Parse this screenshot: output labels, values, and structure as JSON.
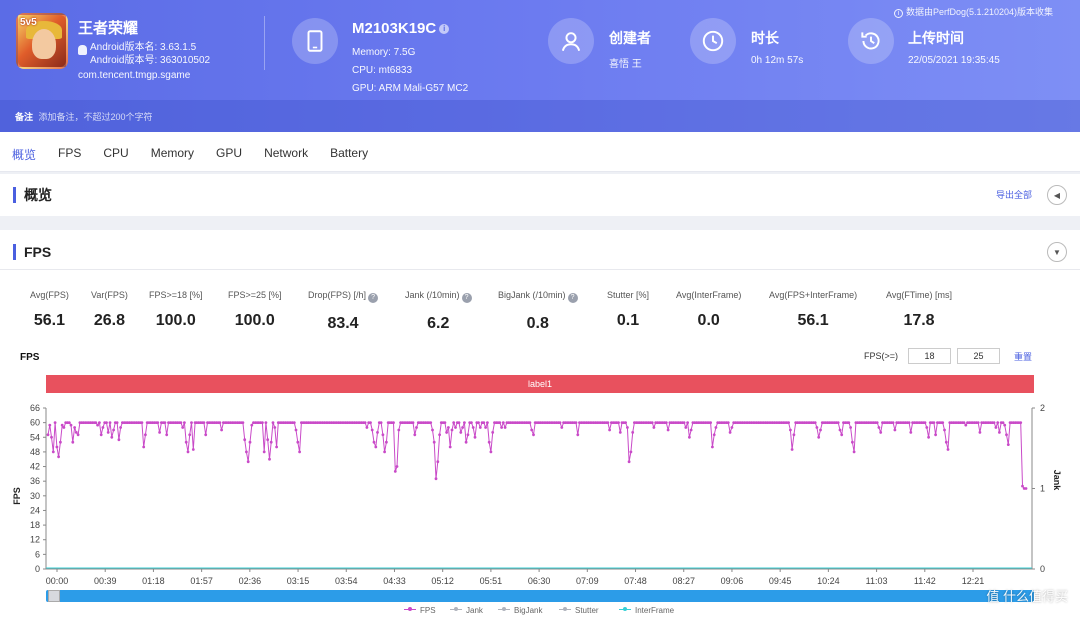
{
  "header": {
    "app": {
      "name": "王者荣耀",
      "version_label": "Android版本名: 3.63.1.5",
      "build_label": "Android版本号: 363010502",
      "package": "com.tencent.tmgp.sgame",
      "badge": "5v5"
    },
    "device": {
      "name": "M2103K19C",
      "memory": "Memory: 7.5G",
      "cpu": "CPU: mt6833",
      "gpu": "GPU: ARM Mali-G57 MC2"
    },
    "creator": {
      "title": "创建者",
      "value": "喜悟 王"
    },
    "duration": {
      "title": "时长",
      "value": "0h 12m 57s"
    },
    "upload": {
      "title": "上传时间",
      "value": "22/05/2021 19:35:45"
    },
    "perfdog_note": "数据由PerfDog(5.1.210204)版本收集",
    "note": {
      "label": "备注",
      "placeholder": "添加备注，不超过200个字符"
    }
  },
  "tabs": [
    "概览",
    "FPS",
    "CPU",
    "Memory",
    "GPU",
    "Network",
    "Battery"
  ],
  "overview": {
    "title": "概览",
    "export_label": "导出全部"
  },
  "fps_section": {
    "title": "FPS",
    "stats": [
      {
        "label": "Avg(FPS)",
        "value": "56.1"
      },
      {
        "label": "Var(FPS)",
        "value": "26.8"
      },
      {
        "label": "FPS>=18 [%]",
        "value": "100.0"
      },
      {
        "label": "FPS>=25 [%]",
        "value": "100.0"
      },
      {
        "label": "Drop(FPS) [/h]",
        "value": "83.4",
        "help": true
      },
      {
        "label": "Jank (/10min)",
        "value": "6.2",
        "help": true
      },
      {
        "label": "BigJank (/10min)",
        "value": "0.8",
        "help": true
      },
      {
        "label": "Stutter [%]",
        "value": "0.1"
      },
      {
        "label": "Avg(InterFrame)",
        "value": "0.0"
      },
      {
        "label": "Avg(FPS+InterFrame)",
        "value": "56.1"
      },
      {
        "label": "Avg(FTime) [ms]",
        "value": "17.8"
      }
    ],
    "chart_title": "FPS",
    "threshold_label": "FPS(>=)",
    "threshold_1": "18",
    "threshold_2": "25",
    "reset_label": "重置",
    "label_bar": "label1"
  },
  "chart_data": {
    "type": "line",
    "ylabel": "FPS",
    "y2label": "Jank",
    "ylim": [
      0,
      66
    ],
    "y2lim": [
      0,
      2
    ],
    "yticks": [
      "66",
      "60",
      "54",
      "48",
      "42",
      "36",
      "30",
      "24",
      "18",
      "12",
      "6",
      "0"
    ],
    "y2ticks": [
      "2",
      "1",
      "0"
    ],
    "xticks": [
      "00:00",
      "00:39",
      "01:18",
      "01:57",
      "02:36",
      "03:15",
      "03:54",
      "04:33",
      "05:12",
      "05:51",
      "06:30",
      "07:09",
      "07:48",
      "08:27",
      "09:06",
      "09:45",
      "10:24",
      "11:03",
      "11:42",
      "12:21"
    ],
    "fps_series": [
      55,
      59,
      54,
      48,
      60,
      50,
      46,
      52,
      59,
      58,
      60,
      60,
      60,
      59,
      52,
      58,
      56,
      55,
      60,
      60,
      60,
      60,
      60,
      60,
      60,
      60,
      60,
      60,
      59,
      60,
      55,
      58,
      60,
      60,
      56,
      60,
      54,
      57,
      60,
      60,
      53,
      58,
      60,
      60,
      60,
      60,
      60,
      60,
      60,
      60,
      60,
      60,
      60,
      60,
      50,
      55,
      60,
      60,
      60,
      60,
      60,
      60,
      60,
      56,
      60,
      60,
      60,
      55,
      60,
      60,
      60,
      60,
      60,
      60,
      60,
      60,
      58,
      60,
      52,
      48,
      55,
      60,
      49,
      60,
      60,
      60,
      60,
      60,
      60,
      55,
      60,
      60,
      60,
      60,
      60,
      60,
      60,
      60,
      57,
      60,
      60,
      60,
      60,
      60,
      60,
      60,
      60,
      60,
      60,
      60,
      60,
      53,
      48,
      44,
      52,
      59,
      60,
      60,
      60,
      60,
      60,
      60,
      48,
      60,
      53,
      45,
      52,
      60,
      58,
      50,
      60,
      60,
      60,
      60,
      60,
      60,
      60,
      60,
      60,
      60,
      57,
      52,
      48,
      60,
      60,
      60,
      60,
      60,
      60,
      60,
      60,
      60,
      60,
      60,
      60,
      60,
      60,
      60,
      60,
      60,
      60,
      60,
      60,
      60,
      60,
      60,
      60,
      60,
      60,
      60,
      60,
      60,
      60,
      60,
      60,
      60,
      60,
      60,
      60,
      60,
      58,
      60,
      60,
      57,
      52,
      50,
      56,
      60,
      60,
      55,
      48,
      52,
      60,
      60,
      60,
      60,
      40,
      42,
      57,
      60,
      60,
      60,
      60,
      60,
      60,
      60,
      60,
      55,
      58,
      60,
      60,
      60,
      60,
      60,
      60,
      60,
      60,
      57,
      52,
      37,
      44,
      55,
      60,
      60,
      60,
      56,
      58,
      50,
      57,
      60,
      58,
      60,
      60,
      56,
      58,
      60,
      52,
      55,
      60,
      60,
      58,
      54,
      60,
      60,
      58,
      60,
      60,
      58,
      60,
      52,
      48,
      56,
      60,
      60,
      60,
      60,
      58,
      60,
      58,
      60,
      60,
      60,
      60,
      60,
      60,
      60,
      60,
      60,
      60,
      60,
      60,
      60,
      60,
      57,
      55,
      60,
      60,
      60,
      60,
      60,
      60,
      60,
      60,
      60,
      60,
      60,
      60,
      60,
      60,
      60,
      58,
      60,
      60,
      60,
      60,
      60,
      60,
      60,
      60,
      55,
      60,
      60,
      60,
      60,
      60,
      60,
      60,
      60,
      60,
      60,
      60,
      60,
      60,
      60,
      60,
      60,
      60,
      57,
      60,
      60,
      60,
      60,
      60,
      56,
      60,
      60,
      60,
      58,
      44,
      48,
      56,
      60,
      60,
      60,
      60,
      60,
      60,
      60,
      60,
      60,
      60,
      60,
      58,
      60,
      60,
      60,
      60,
      60,
      60,
      60,
      57,
      60,
      60,
      60,
      60,
      60,
      60,
      60,
      60,
      60,
      58,
      60,
      54,
      57,
      60,
      60,
      60,
      60,
      60,
      60,
      60,
      60,
      60,
      60,
      60,
      50,
      55,
      58,
      60,
      60,
      60,
      60,
      60,
      60,
      60,
      56,
      58,
      60,
      60,
      60,
      60,
      60,
      60,
      60,
      60,
      60,
      60,
      60,
      60,
      60,
      60,
      60,
      60,
      60,
      60,
      60,
      60,
      60,
      60,
      60,
      60,
      60,
      60,
      60,
      60,
      60,
      60,
      60,
      60,
      57,
      49,
      55,
      60,
      60,
      60,
      60,
      60,
      60,
      60,
      60,
      60,
      60,
      60,
      60,
      58,
      54,
      57,
      60,
      60,
      60,
      60,
      60,
      60,
      60,
      60,
      60,
      60,
      57,
      55,
      60,
      60,
      60,
      60,
      58,
      52,
      48,
      60,
      60,
      60,
      60,
      60,
      60,
      60,
      60,
      60,
      60,
      60,
      60,
      60,
      58,
      56,
      60,
      60,
      60,
      60,
      60,
      60,
      60,
      57,
      60,
      60,
      60,
      60,
      60,
      60,
      60,
      60,
      56,
      60,
      60,
      60,
      60,
      60,
      60,
      60,
      60,
      58,
      54,
      60,
      60,
      60,
      55,
      60,
      60,
      60,
      60,
      57,
      52,
      49,
      60,
      60,
      60,
      60,
      60,
      60,
      60,
      60,
      60,
      59,
      60,
      60,
      60,
      60,
      60,
      60,
      60,
      56,
      60,
      60,
      60,
      60,
      60,
      60,
      60,
      60,
      58,
      60,
      56,
      60,
      60,
      59,
      55,
      51,
      60,
      60,
      60,
      60,
      60,
      60,
      60,
      34,
      33,
      33
    ],
    "jank_series_note": "",
    "series": [
      {
        "name": "FPS",
        "color": "#c94ac8"
      },
      {
        "name": "Jank",
        "color": "#b0b4bd"
      },
      {
        "name": "BigJank",
        "color": "#b0b4bd"
      },
      {
        "name": "Stutter",
        "color": "#b0b4bd"
      },
      {
        "name": "InterFrame",
        "color": "#37d0d6"
      }
    ]
  },
  "watermark": "值 什么值得买",
  "colors": {
    "accent": "#4a5fe0",
    "header": "#6474ec",
    "label_bar": "#e8515e",
    "scroll": "#2c9ce8"
  }
}
